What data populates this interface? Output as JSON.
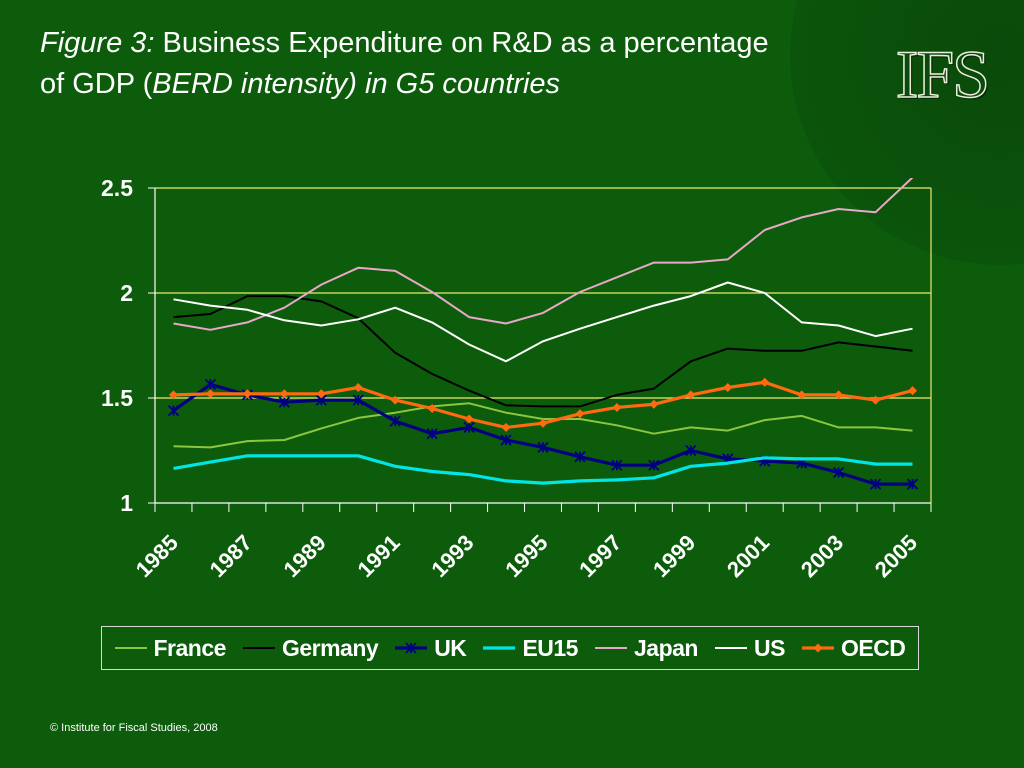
{
  "title": {
    "prefix": "Figure 3:",
    "main": " Business Expenditure on R&D as a percentage of GDP (",
    "emphasis": "BERD intensity) in G5 countries"
  },
  "logo": "IFS",
  "copyright": "© Institute for Fiscal Studies, 2008",
  "colors": {
    "background": "#0c5c0c",
    "gridline": "#e8ec70",
    "axis": "#ffffff"
  },
  "chart_data": {
    "type": "line",
    "title": "",
    "xlabel": "",
    "ylabel": "",
    "ylim": [
      1,
      2.5
    ],
    "yticks": [
      "2.5",
      "2",
      "1.5",
      "1"
    ],
    "xlim": [
      1985,
      2006
    ],
    "xticks": [
      "1985",
      "1987",
      "1989",
      "1991",
      "1993",
      "1995",
      "1997",
      "1999",
      "2001",
      "2003",
      "2005"
    ],
    "grid": "horizontal",
    "legend_position": "bottom",
    "x": [
      1985,
      1986,
      1987,
      1988,
      1989,
      1990,
      1991,
      1992,
      1993,
      1994,
      1995,
      1996,
      1997,
      1998,
      1999,
      2000,
      2001,
      2002,
      2003,
      2004,
      2005
    ],
    "series": [
      {
        "name": "France",
        "color": "#8cc63f",
        "marker": "none",
        "values": [
          1.27,
          1.265,
          1.295,
          1.3,
          1.355,
          1.405,
          1.43,
          1.46,
          1.475,
          1.43,
          1.4,
          1.4,
          1.37,
          1.33,
          1.36,
          1.345,
          1.395,
          1.415,
          1.36,
          1.36,
          1.345
        ]
      },
      {
        "name": "Germany",
        "color": "#000000",
        "marker": "none",
        "values": [
          1.885,
          1.9,
          1.985,
          1.985,
          1.96,
          1.88,
          1.715,
          1.615,
          1.535,
          1.465,
          1.46,
          1.46,
          1.515,
          1.545,
          1.675,
          1.735,
          1.725,
          1.725,
          1.765,
          1.745,
          1.725
        ]
      },
      {
        "name": "UK",
        "color": "#000080",
        "marker": "star",
        "values": [
          1.44,
          1.565,
          1.515,
          1.48,
          1.49,
          1.49,
          1.39,
          1.33,
          1.36,
          1.3,
          1.265,
          1.22,
          1.18,
          1.18,
          1.25,
          1.21,
          1.2,
          1.19,
          1.145,
          1.09,
          1.09
        ]
      },
      {
        "name": "EU15",
        "color": "#00e5e5",
        "marker": "none",
        "values": [
          1.165,
          1.195,
          1.225,
          1.225,
          1.225,
          1.225,
          1.175,
          1.15,
          1.135,
          1.105,
          1.095,
          1.105,
          1.11,
          1.12,
          1.175,
          1.19,
          1.215,
          1.21,
          1.21,
          1.185,
          1.185
        ]
      },
      {
        "name": "Japan",
        "color": "#e8a8c8",
        "marker": "none",
        "values": [
          1.855,
          1.825,
          1.86,
          1.93,
          2.04,
          2.12,
          2.105,
          2.005,
          1.885,
          1.855,
          1.905,
          2.005,
          2.075,
          2.145,
          2.145,
          2.16,
          2.3,
          2.36,
          2.4,
          2.385,
          2.55
        ]
      },
      {
        "name": "US",
        "color": "#ffffff",
        "marker": "none",
        "values": [
          1.97,
          1.94,
          1.92,
          1.87,
          1.845,
          1.875,
          1.93,
          1.86,
          1.755,
          1.675,
          1.77,
          1.83,
          1.885,
          1.94,
          1.985,
          2.05,
          2.0,
          1.86,
          1.845,
          1.795,
          1.83
        ]
      },
      {
        "name": "OECD",
        "color": "#ff6a10",
        "marker": "diamond",
        "values": [
          1.515,
          1.52,
          1.52,
          1.52,
          1.52,
          1.55,
          1.49,
          1.45,
          1.4,
          1.36,
          1.38,
          1.425,
          1.455,
          1.47,
          1.515,
          1.55,
          1.575,
          1.515,
          1.515,
          1.49,
          1.535
        ]
      }
    ]
  }
}
